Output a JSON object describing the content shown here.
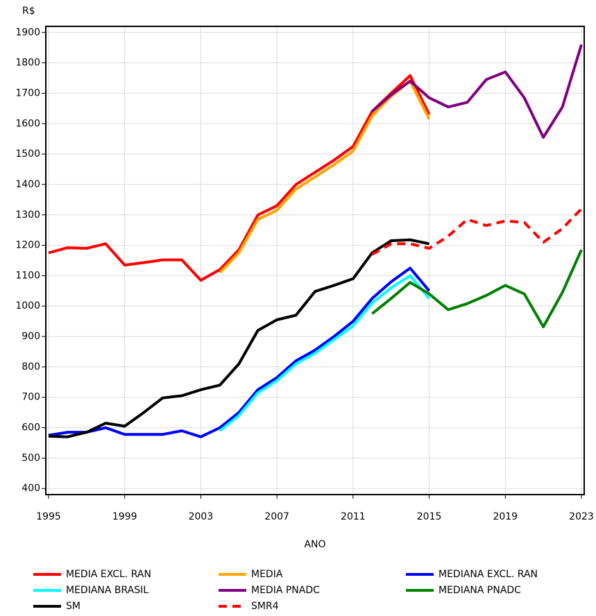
{
  "chart_data": {
    "type": "line",
    "ylabel": "R$",
    "xlabel": "ANO",
    "xlim": [
      1995,
      2023
    ],
    "xticks": [
      1995,
      1999,
      2003,
      2007,
      2011,
      2015,
      2019,
      2023
    ],
    "ylim": [
      380,
      1920
    ],
    "yticks": [
      400,
      500,
      600,
      700,
      800,
      900,
      1000,
      1100,
      1200,
      1300,
      1400,
      1500,
      1600,
      1700,
      1800,
      1900
    ],
    "grid": true,
    "series": [
      {
        "name": "MEDIA EXCL. RAN",
        "color": "#ff0000",
        "dashed": false,
        "x": [
          1995,
          1996,
          1997,
          1998,
          1999,
          2000,
          2001,
          2002,
          2003,
          2004,
          2005,
          2006,
          2007,
          2008,
          2009,
          2010,
          2011,
          2012,
          2013,
          2014,
          2015
        ],
        "values": [
          1175,
          1192,
          1190,
          1205,
          1135,
          1143,
          1152,
          1152,
          1085,
          1120,
          1185,
          1300,
          1330,
          1400,
          1440,
          1480,
          1525,
          1640,
          1700,
          1758,
          1630
        ]
      },
      {
        "name": "MEDIA",
        "color": "#ffa500",
        "dashed": false,
        "x": [
          2004,
          2005,
          2006,
          2007,
          2008,
          2009,
          2010,
          2011,
          2012,
          2013,
          2014,
          2015
        ],
        "values": [
          1110,
          1175,
          1285,
          1315,
          1385,
          1425,
          1465,
          1510,
          1625,
          1690,
          1740,
          1615
        ]
      },
      {
        "name": "MEDIANA EXCL. RAN",
        "color": "#0000ff",
        "dashed": false,
        "x": [
          1995,
          1996,
          1997,
          1998,
          1999,
          2000,
          2001,
          2002,
          2003,
          2004,
          2005,
          2006,
          2007,
          2008,
          2009,
          2010,
          2011,
          2012,
          2013,
          2014,
          2015
        ],
        "values": [
          575,
          585,
          585,
          600,
          578,
          578,
          578,
          590,
          570,
          600,
          650,
          725,
          765,
          820,
          855,
          900,
          950,
          1025,
          1080,
          1125,
          1050
        ]
      },
      {
        "name": "MEDIANA BRASIL",
        "color": "#00ffff",
        "dashed": false,
        "x": [
          2004,
          2005,
          2006,
          2007,
          2008,
          2009,
          2010,
          2011,
          2012,
          2013,
          2014,
          2015
        ],
        "values": [
          590,
          640,
          715,
          755,
          810,
          845,
          890,
          935,
          1010,
          1060,
          1100,
          1025
        ]
      },
      {
        "name": "MEDIA PNADC",
        "color": "#800080",
        "dashed": false,
        "x": [
          2012,
          2013,
          2014,
          2015,
          2016,
          2017,
          2018,
          2019,
          2020,
          2021,
          2022,
          2023
        ],
        "values": [
          1640,
          1695,
          1740,
          1685,
          1655,
          1670,
          1745,
          1770,
          1685,
          1555,
          1655,
          1860
        ]
      },
      {
        "name": "MEDIANA PNADC",
        "color": "#008000",
        "dashed": false,
        "x": [
          2012,
          2013,
          2014,
          2015,
          2016,
          2017,
          2018,
          2019,
          2020,
          2021,
          2022,
          2023
        ],
        "values": [
          975,
          1025,
          1078,
          1040,
          988,
          1008,
          1035,
          1068,
          1040,
          932,
          1045,
          1185
        ]
      },
      {
        "name": "SM",
        "color": "#000000",
        "dashed": false,
        "x": [
          1995,
          1996,
          1997,
          1998,
          1999,
          2000,
          2001,
          2002,
          2003,
          2004,
          2005,
          2006,
          2007,
          2008,
          2009,
          2010,
          2011,
          2012,
          2013,
          2014,
          2015
        ],
        "values": [
          572,
          570,
          585,
          615,
          605,
          650,
          698,
          705,
          725,
          740,
          810,
          920,
          955,
          970,
          1048,
          1068,
          1090,
          1175,
          1215,
          1218,
          1205
        ]
      },
      {
        "name": "SMR4",
        "color": "#ff0000",
        "dashed": true,
        "x": [
          2012,
          2013,
          2014,
          2015,
          2016,
          2017,
          2018,
          2019,
          2020,
          2021,
          2022,
          2023
        ],
        "values": [
          1170,
          1205,
          1205,
          1190,
          1230,
          1285,
          1265,
          1280,
          1275,
          1210,
          1255,
          1320
        ]
      }
    ]
  }
}
